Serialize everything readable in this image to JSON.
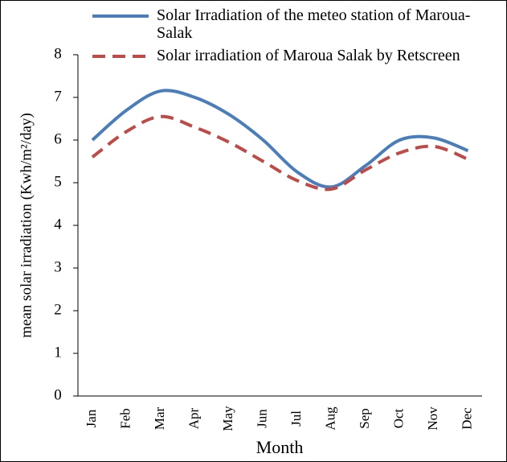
{
  "chart_data": {
    "type": "line",
    "x_label": "Month",
    "y_label": "mean solar irradiation (Kwh/m²/day)",
    "categories": [
      "Jan",
      "Feb",
      "Mar",
      "Apr",
      "May",
      "Jun",
      "Jul",
      "Aug",
      "Sep",
      "Oct",
      "Nov",
      "Dec"
    ],
    "series": [
      {
        "name": "Solar Irradiation of the meteo station of Maroua-Salak",
        "color": "#4a7ebb",
        "style": "solid",
        "values": [
          6.0,
          6.7,
          7.15,
          7.0,
          6.6,
          6.0,
          5.25,
          4.9,
          5.4,
          6.0,
          6.05,
          5.75
        ]
      },
      {
        "name": "Solar irradiation of Maroua Salak by Retscreen",
        "color": "#be4b48",
        "style": "dashed",
        "values": [
          5.6,
          6.2,
          6.55,
          6.3,
          5.95,
          5.5,
          5.05,
          4.85,
          5.3,
          5.7,
          5.85,
          5.55
        ]
      }
    ],
    "ylim": [
      0,
      8
    ],
    "yticks": [
      0,
      1,
      2,
      3,
      4,
      5,
      6,
      7,
      8
    ],
    "grid": false,
    "legend": "top"
  }
}
